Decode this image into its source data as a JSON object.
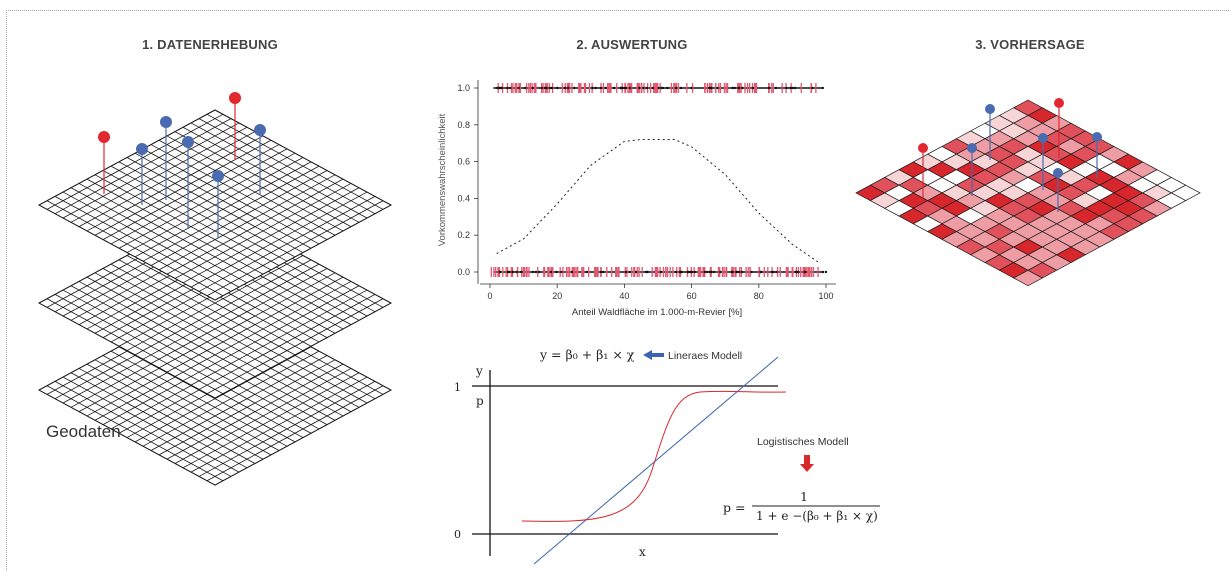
{
  "panels": {
    "p1": {
      "title": "1. DATENERHEBUNG",
      "geo_label": "Geodaten"
    },
    "p2": {
      "title": "2. AUSWERTUNG"
    },
    "p3": {
      "title": "3. VORHERSAGE"
    }
  },
  "chart_data": {
    "type": "scatter",
    "xlabel": "Anteil Waldfläche im 1.000-m-Revier [%]",
    "ylabel": "Vorkommenswahrscheinlichkeit",
    "xlim": [
      0,
      100
    ],
    "ylim": [
      0,
      1
    ],
    "x_ticks": [
      "0",
      "20",
      "40",
      "60",
      "80",
      "100"
    ],
    "y_ticks": [
      "0.0",
      "0.2",
      "0.4",
      "0.6",
      "0.8",
      "1.0"
    ],
    "curve": {
      "x": [
        2,
        10,
        20,
        30,
        40,
        45,
        55,
        60,
        70,
        80,
        90,
        98
      ],
      "y": [
        0.1,
        0.18,
        0.37,
        0.58,
        0.71,
        0.72,
        0.72,
        0.68,
        0.53,
        0.32,
        0.15,
        0.05
      ]
    },
    "rug_y": [
      0,
      1
    ],
    "colors": {
      "observations": "#e2566f",
      "curve": "#222222"
    }
  },
  "model": {
    "linear_formula": "y = β₀ + β₁ × χ",
    "linear_label": "Lineraes Modell",
    "logistic_label": "Logistisches Modell",
    "logistic_lhs": "p =",
    "logistic_num": "1",
    "logistic_den": "1 + e −(β₀ + β₁ × χ)",
    "axis_y": "y",
    "axis_p": "p",
    "axis_x": "x",
    "tick_1": "1",
    "tick_0": "0",
    "colors": {
      "linear": "#3a66b0",
      "logistic": "#d9282b"
    }
  },
  "colors": {
    "red_pin": "#e0282e",
    "blue_pin": "#4a6bb0",
    "grid": "#1a1a1a"
  }
}
